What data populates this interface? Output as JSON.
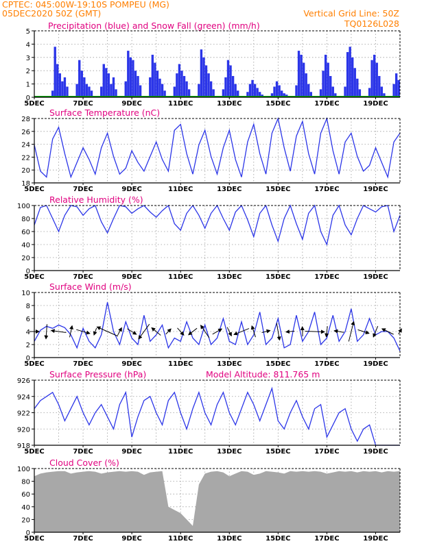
{
  "header": {
    "line1_left": "CPTEC:   045:00W-19:10S   POMPEU (MG)",
    "line2_left": "05DEC2020 50Z (GMT)",
    "line2_right": "Vertical Grid Line: 50Z",
    "line3_right": "TQ0126L028"
  },
  "colors": {
    "header_text": "#ff7f00",
    "title_text": "#e0007f",
    "series_line": "#2b35e8",
    "precip_bar": "#2b35e8",
    "snow_line": "#00a000",
    "cloud_fill": "#a8a8a8",
    "grid": "#9a9a9a",
    "wind_arrow": "#000000"
  },
  "x_axis": {
    "tick_labels": [
      "5DEC",
      "7DEC",
      "9DEC",
      "11DEC",
      "13DEC",
      "15DEC",
      "17DEC",
      "19DEC"
    ],
    "start_day": 5,
    "end_day": 20
  },
  "chart_data": [
    {
      "id": "precip",
      "type": "bar",
      "title": "Precipitation (blue) and Snow Fall (green) (mm/h)",
      "ylim": [
        0,
        5
      ],
      "yticks": [
        "0",
        "1",
        "2",
        "3",
        "4",
        "5"
      ],
      "x": [
        5.75,
        5.85,
        5.95,
        6.05,
        6.15,
        6.25,
        6.35,
        6.75,
        6.85,
        6.95,
        7.05,
        7.15,
        7.25,
        7.35,
        7.75,
        7.85,
        7.95,
        8.05,
        8.15,
        8.25,
        8.35,
        8.75,
        8.85,
        8.95,
        9.05,
        9.15,
        9.25,
        9.35,
        9.75,
        9.85,
        9.95,
        10.05,
        10.15,
        10.25,
        10.35,
        10.75,
        10.85,
        10.95,
        11.05,
        11.15,
        11.25,
        11.35,
        11.75,
        11.85,
        11.95,
        12.05,
        12.15,
        12.25,
        12.35,
        12.75,
        12.85,
        12.95,
        13.05,
        13.15,
        13.25,
        13.35,
        13.75,
        13.85,
        13.95,
        14.05,
        14.15,
        14.25,
        14.35,
        14.75,
        14.85,
        14.95,
        15.05,
        15.15,
        15.25,
        15.35,
        15.75,
        15.85,
        15.95,
        16.05,
        16.15,
        16.25,
        16.35,
        16.75,
        16.85,
        16.95,
        17.05,
        17.15,
        17.25,
        17.35,
        17.75,
        17.85,
        17.95,
        18.05,
        18.15,
        18.25,
        18.35,
        18.75,
        18.85,
        18.95,
        19.05,
        19.15,
        19.25,
        19.35,
        19.75,
        19.85,
        19.95
      ],
      "values": [
        0.5,
        3.8,
        2.5,
        1.8,
        1.2,
        1.5,
        0.8,
        1.0,
        2.8,
        2.0,
        1.5,
        1.0,
        0.8,
        0.5,
        0.8,
        2.5,
        2.2,
        1.8,
        1.0,
        1.5,
        0.6,
        1.2,
        3.5,
        3.0,
        2.8,
        2.0,
        1.6,
        0.9,
        1.5,
        3.2,
        2.6,
        2.0,
        1.4,
        1.0,
        0.5,
        0.8,
        1.8,
        2.5,
        2.0,
        1.6,
        1.2,
        0.6,
        1.0,
        3.6,
        3.0,
        2.4,
        1.8,
        1.2,
        0.6,
        0.6,
        1.5,
        2.8,
        2.4,
        1.6,
        1.0,
        0.5,
        0.4,
        1.0,
        1.3,
        1.0,
        0.7,
        0.4,
        0.2,
        0.3,
        0.8,
        1.2,
        0.9,
        0.5,
        0.3,
        0.2,
        0.9,
        3.5,
        3.2,
        2.6,
        1.8,
        1.0,
        0.4,
        0.6,
        2.0,
        3.2,
        2.6,
        1.6,
        0.8,
        0.3,
        0.8,
        3.4,
        3.8,
        3.0,
        2.2,
        1.4,
        0.6,
        0.7,
        2.8,
        3.2,
        2.6,
        1.6,
        0.8,
        0.3,
        1.0,
        1.8,
        1.3
      ],
      "snow_values": [
        0,
        0
      ]
    },
    {
      "id": "temp",
      "type": "line",
      "title": "Surface Temperature (nC)",
      "ylim": [
        17,
        28
      ],
      "yticks": [
        "18",
        "20",
        "22",
        "24",
        "26",
        "28"
      ],
      "x": [
        5.0,
        5.25,
        5.5,
        5.75,
        6.0,
        6.25,
        6.5,
        6.75,
        7.0,
        7.25,
        7.5,
        7.75,
        8.0,
        8.25,
        8.5,
        8.75,
        9.0,
        9.25,
        9.5,
        9.75,
        10.0,
        10.25,
        10.5,
        10.75,
        11.0,
        11.25,
        11.5,
        11.75,
        12.0,
        12.25,
        12.5,
        12.75,
        13.0,
        13.25,
        13.5,
        13.75,
        14.0,
        14.25,
        14.5,
        14.75,
        15.0,
        15.25,
        15.5,
        15.75,
        16.0,
        16.25,
        16.5,
        16.75,
        17.0,
        17.25,
        17.5,
        17.75,
        18.0,
        18.25,
        18.5,
        18.75,
        19.0,
        19.25,
        19.5,
        19.75,
        20.0
      ],
      "values": [
        23.5,
        19.0,
        18.0,
        24.5,
        26.5,
        22.0,
        18.0,
        20.5,
        23.0,
        21.0,
        18.5,
        23.0,
        25.5,
        21.5,
        18.5,
        19.5,
        22.5,
        20.5,
        19.0,
        21.5,
        24.0,
        21.0,
        19.0,
        26.0,
        27.0,
        22.0,
        18.5,
        23.5,
        26.0,
        21.5,
        18.5,
        23.0,
        26.0,
        21.0,
        18.0,
        24.0,
        27.0,
        22.0,
        18.5,
        25.5,
        28.0,
        23.0,
        19.0,
        25.0,
        27.5,
        22.0,
        18.5,
        25.5,
        28.0,
        22.5,
        18.5,
        24.0,
        25.5,
        21.5,
        19.0,
        20.0,
        23.0,
        20.5,
        18.0,
        24.0,
        25.5
      ]
    },
    {
      "id": "rh",
      "type": "line",
      "title": "Relative Humidity (%)",
      "ylim": [
        0,
        100
      ],
      "yticks": [
        "0",
        "20",
        "40",
        "60",
        "80",
        "100"
      ],
      "x": [
        5.0,
        5.25,
        5.5,
        5.75,
        6.0,
        6.25,
        6.5,
        6.75,
        7.0,
        7.25,
        7.5,
        7.75,
        8.0,
        8.25,
        8.5,
        8.75,
        9.0,
        9.25,
        9.5,
        9.75,
        10.0,
        10.25,
        10.5,
        10.75,
        11.0,
        11.25,
        11.5,
        11.75,
        12.0,
        12.25,
        12.5,
        12.75,
        13.0,
        13.25,
        13.5,
        13.75,
        14.0,
        14.25,
        14.5,
        14.75,
        15.0,
        15.25,
        15.5,
        15.75,
        16.0,
        16.25,
        16.5,
        16.75,
        17.0,
        17.25,
        17.5,
        17.75,
        18.0,
        18.25,
        18.5,
        18.75,
        19.0,
        19.25,
        19.5,
        19.75,
        20.0
      ],
      "values": [
        70,
        97,
        100,
        80,
        60,
        85,
        100,
        98,
        85,
        95,
        100,
        75,
        58,
        80,
        100,
        98,
        88,
        95,
        100,
        90,
        82,
        92,
        100,
        72,
        62,
        88,
        100,
        85,
        65,
        88,
        100,
        80,
        62,
        90,
        100,
        78,
        52,
        88,
        100,
        70,
        45,
        80,
        100,
        72,
        48,
        88,
        100,
        60,
        40,
        85,
        100,
        70,
        55,
        80,
        100,
        95,
        90,
        98,
        100,
        60,
        85
      ]
    },
    {
      "id": "wind",
      "type": "line",
      "title": "Surface Wind (m/s)",
      "ylim": [
        0,
        10
      ],
      "yticks": [
        "0",
        "2",
        "4",
        "6",
        "8",
        "10"
      ],
      "x": [
        5.0,
        5.25,
        5.5,
        5.75,
        6.0,
        6.25,
        6.5,
        6.75,
        7.0,
        7.25,
        7.5,
        7.75,
        8.0,
        8.25,
        8.5,
        8.75,
        9.0,
        9.25,
        9.5,
        9.75,
        10.0,
        10.25,
        10.5,
        10.75,
        11.0,
        11.25,
        11.5,
        11.75,
        12.0,
        12.25,
        12.5,
        12.75,
        13.0,
        13.25,
        13.5,
        13.75,
        14.0,
        14.25,
        14.5,
        14.75,
        15.0,
        15.25,
        15.5,
        15.75,
        16.0,
        16.25,
        16.5,
        16.75,
        17.0,
        17.25,
        17.5,
        17.75,
        18.0,
        18.25,
        18.5,
        18.75,
        19.0,
        19.25,
        19.5,
        19.75,
        20.0
      ],
      "values": [
        2.5,
        4.2,
        4.8,
        4.5,
        5.0,
        4.6,
        3.5,
        1.5,
        4.5,
        2.5,
        1.5,
        3.5,
        8.5,
        4.0,
        2.0,
        5.5,
        3.0,
        2.0,
        6.5,
        2.5,
        3.5,
        5.0,
        1.5,
        3.0,
        2.5,
        5.5,
        3.0,
        2.0,
        5.0,
        2.0,
        3.0,
        6.0,
        2.5,
        2.0,
        5.5,
        2.0,
        3.5,
        7.0,
        2.0,
        3.0,
        6.0,
        1.5,
        2.0,
        6.5,
        2.5,
        4.0,
        7.0,
        2.0,
        3.0,
        6.5,
        2.5,
        4.0,
        7.5,
        2.5,
        3.5,
        6.0,
        3.5,
        4.0,
        4.0,
        3.0,
        1.0
      ]
    },
    {
      "id": "pressure",
      "type": "line",
      "title": "Surface Pressure (hPa)",
      "annotation": "Model Altitude: 811.765 m",
      "ylim": [
        918,
        926
      ],
      "yticks": [
        "918",
        "920",
        "922",
        "924",
        "926"
      ],
      "x": [
        5.0,
        5.25,
        5.5,
        5.75,
        6.0,
        6.25,
        6.5,
        6.75,
        7.0,
        7.25,
        7.5,
        7.75,
        8.0,
        8.25,
        8.5,
        8.75,
        9.0,
        9.25,
        9.5,
        9.75,
        10.0,
        10.25,
        10.5,
        10.75,
        11.0,
        11.25,
        11.5,
        11.75,
        12.0,
        12.25,
        12.5,
        12.75,
        13.0,
        13.25,
        13.5,
        13.75,
        14.0,
        14.25,
        14.5,
        14.75,
        15.0,
        15.25,
        15.5,
        15.75,
        16.0,
        16.25,
        16.5,
        16.75,
        17.0,
        17.25,
        17.5,
        17.75,
        18.0,
        18.25,
        18.5,
        18.75,
        19.0,
        19.25,
        19.5,
        19.75,
        20.0
      ],
      "values": [
        922.5,
        923.5,
        924.0,
        924.5,
        923.0,
        921.0,
        922.5,
        924.0,
        922.0,
        920.5,
        922.0,
        923.0,
        921.5,
        920.0,
        923.0,
        924.5,
        919.0,
        921.5,
        923.5,
        924.0,
        922.0,
        920.5,
        923.5,
        924.5,
        922.0,
        920.0,
        922.5,
        924.5,
        922.0,
        920.5,
        923.0,
        924.5,
        922.0,
        920.5,
        922.5,
        924.5,
        923.0,
        921.0,
        923.0,
        925.0,
        921.0,
        920.0,
        922.0,
        923.5,
        921.5,
        920.0,
        922.5,
        923.0,
        919.0,
        920.5,
        922.0,
        922.5,
        920.0,
        918.5,
        920.0,
        920.5,
        918.0,
        918.0,
        917.5,
        917.5,
        917.5
      ]
    },
    {
      "id": "cloud",
      "type": "area",
      "title": "Cloud Cover (%)",
      "ylim": [
        0,
        100
      ],
      "yticks": [
        "0",
        "20",
        "40",
        "60",
        "80",
        "100"
      ],
      "x": [
        5.0,
        5.25,
        5.5,
        5.75,
        6.0,
        6.25,
        6.5,
        6.75,
        7.0,
        7.25,
        7.5,
        7.75,
        8.0,
        8.25,
        8.5,
        8.75,
        9.0,
        9.25,
        9.5,
        9.75,
        10.0,
        10.25,
        10.5,
        10.75,
        11.0,
        11.25,
        11.5,
        11.75,
        12.0,
        12.25,
        12.5,
        12.75,
        13.0,
        13.25,
        13.5,
        13.75,
        14.0,
        14.25,
        14.5,
        14.75,
        15.0,
        15.25,
        15.5,
        15.75,
        16.0,
        16.25,
        16.5,
        16.75,
        17.0,
        17.25,
        17.5,
        17.75,
        18.0,
        18.25,
        18.5,
        18.75,
        19.0,
        19.25,
        19.5,
        19.75,
        20.0
      ],
      "values": [
        88,
        92,
        94,
        95,
        96,
        96,
        92,
        94,
        95,
        96,
        95,
        92,
        94,
        95,
        96,
        95,
        96,
        95,
        90,
        94,
        95,
        96,
        40,
        35,
        30,
        20,
        10,
        75,
        92,
        95,
        96,
        94,
        88,
        92,
        96,
        95,
        90,
        92,
        96,
        95,
        94,
        92,
        96,
        95,
        96,
        95,
        96,
        95,
        92,
        94,
        96,
        95,
        96,
        94,
        96,
        95,
        96,
        94,
        96,
        95,
        96
      ]
    }
  ]
}
